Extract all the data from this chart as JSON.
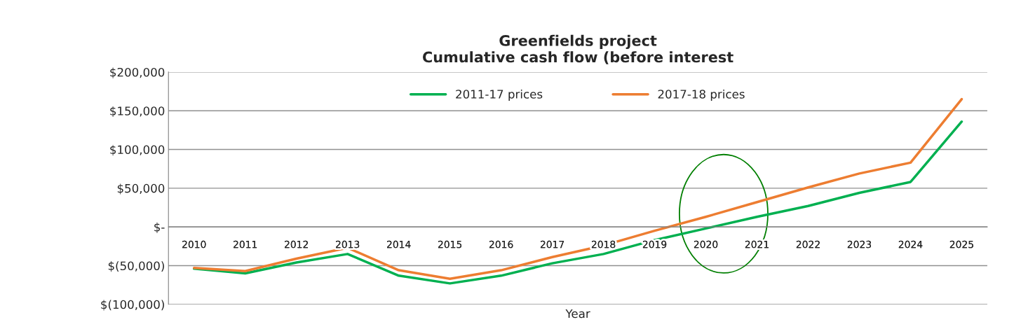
{
  "chart_data": {
    "type": "line",
    "title": "Greenfields project\nCumulative cash flow (before interest",
    "xlabel": "Year",
    "categories": [
      "2010",
      "2011",
      "2012",
      "2013",
      "2014",
      "2015",
      "2016",
      "2017",
      "2018",
      "2019",
      "2020",
      "2021",
      "2022",
      "2023",
      "2024",
      "2025"
    ],
    "series": [
      {
        "name": "2011-17 prices",
        "color": "#00b050",
        "values": [
          -54000,
          -60000,
          -46000,
          -35000,
          -63000,
          -73000,
          -63000,
          -47000,
          -35000,
          -17000,
          -2000,
          13000,
          27000,
          44000,
          58000,
          136000
        ]
      },
      {
        "name": "2017-18 prices",
        "color": "#ed7d31",
        "values": [
          -53000,
          -57000,
          -41000,
          -27000,
          -56000,
          -67000,
          -56000,
          -39000,
          -24000,
          -5000,
          13000,
          32000,
          51000,
          69000,
          83000,
          165000
        ]
      }
    ],
    "ylim": [
      -100000,
      200000
    ],
    "yticks": [
      {
        "value": -100000,
        "label": "$(100,000)"
      },
      {
        "value": -50000,
        "label": "$(50,000)"
      },
      {
        "value": 0,
        "label": "$-"
      },
      {
        "value": 50000,
        "label": "$50,000"
      },
      {
        "value": 100000,
        "label": "$100,000"
      },
      {
        "value": 150000,
        "label": "$150,000"
      },
      {
        "value": 200000,
        "label": "$200,000"
      }
    ],
    "grid": "y",
    "legend": "top",
    "marker": "none",
    "line_style": "solid"
  }
}
